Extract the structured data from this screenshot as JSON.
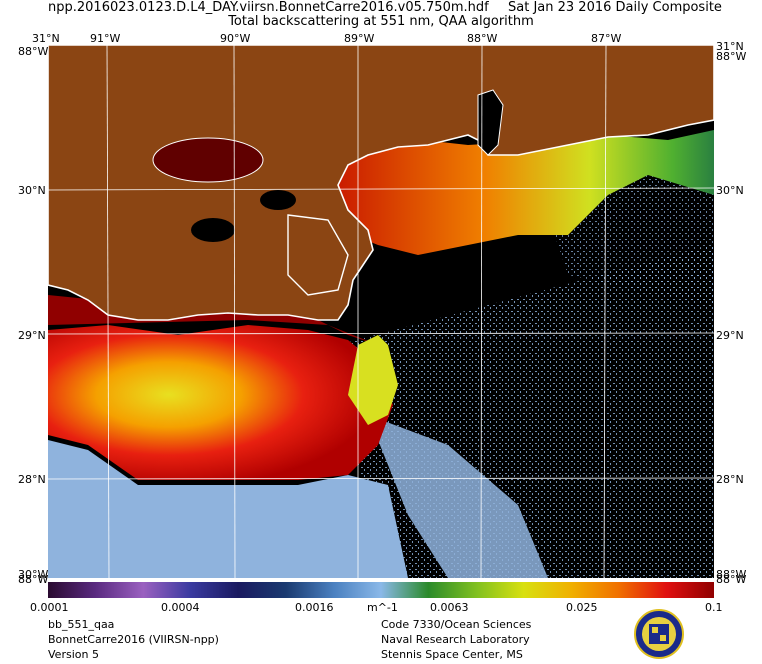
{
  "header": {
    "file_name": "npp.2016023.0123.D.L4_DAY.viirsn.BonnetCarre2016.v05.750m.hdf",
    "date_text": "Sat Jan 23 2016 Daily Composite",
    "subtitle": "Total backscattering at 551 nm, QAA algorithm"
  },
  "map": {
    "lon_labels": [
      "91°W",
      "90°W",
      "89°W",
      "88°W",
      "87°W"
    ],
    "lat_labels": [
      "31°N",
      "30°N",
      "29°N",
      "28°N"
    ],
    "corner_labels": {
      "top_left": "88°W",
      "top_right": "88°W",
      "bottom_left": "88°W",
      "bottom_right": "88°W",
      "top_left_overlap": "31°N",
      "top_right_overlap": "31°N",
      "bottom_left_overlap": "30°W",
      "bottom_right_overlap": "88°W"
    },
    "colors": {
      "land": "#8b4513",
      "coastline": "#ffffff",
      "no_data": "#000000",
      "clear_water": "#8fb3dd"
    }
  },
  "colorbar": {
    "tick_labels": [
      "0.0001",
      "0.0004",
      "0.0016",
      "m^-1",
      "0.0063",
      "0.025",
      "0.1"
    ],
    "stops": [
      "#2a0a30",
      "#5a2a80",
      "#9a60c0",
      "#3a3aa0",
      "#1a1a60",
      "#1a3a70",
      "#4a80c0",
      "#8ab8e8",
      "#2a8a2a",
      "#80c020",
      "#d8e010",
      "#f0b000",
      "#f07000",
      "#e01010",
      "#900000"
    ]
  },
  "footer": {
    "left": [
      "bb_551_qaa",
      "BonnetCarre2016 (VIIRSN-npp)",
      "Version 5"
    ],
    "right": [
      "Code 7330/Ocean Sciences",
      "Naval Research Laboratory",
      "Stennis Space Center, MS"
    ]
  }
}
